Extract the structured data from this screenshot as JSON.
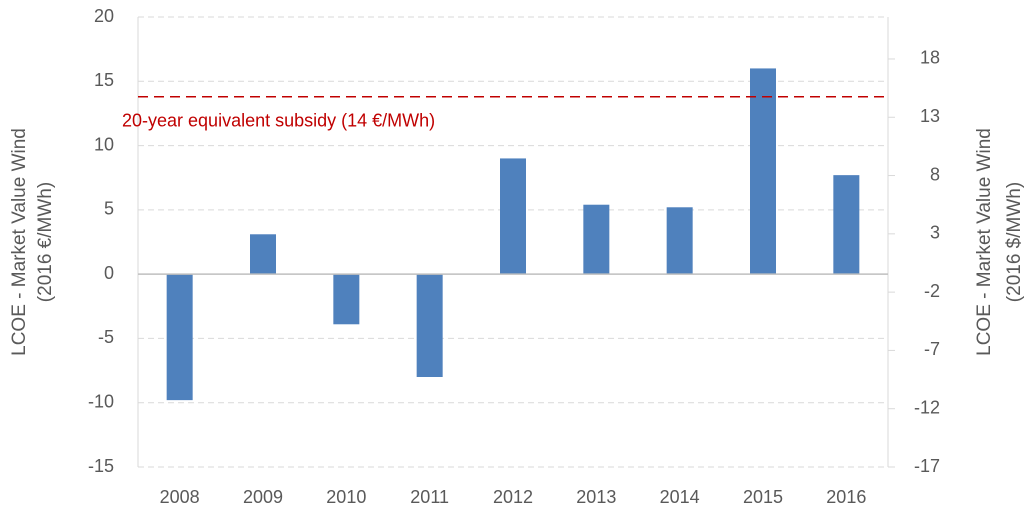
{
  "chart_data": {
    "type": "bar",
    "categories": [
      "2008",
      "2009",
      "2010",
      "2011",
      "2012",
      "2013",
      "2014",
      "2015",
      "2016"
    ],
    "values": [
      -9.8,
      3.1,
      -3.9,
      -8,
      9,
      5.4,
      5.2,
      16,
      7.7
    ],
    "color": "#4f81bd",
    "ylim": [
      -15,
      20
    ],
    "yticks": [
      -15,
      -10,
      -5,
      0,
      5,
      10,
      15,
      20
    ],
    "y2lim": [
      -17,
      21.6
    ],
    "y2ticks": [
      -17,
      -12,
      -7,
      -2,
      3,
      8,
      13,
      18
    ],
    "ylabel": [
      "LCOE - Market Value Wind",
      "(2016 €/MWh)"
    ],
    "y2label": [
      "LCOE - Market Value Wind",
      "(2016 $/MWh)"
    ],
    "grid": true,
    "reference_line": {
      "value": 13.8,
      "label": "20-year equivalent subsidy (14 €/MWh)",
      "color": "#c00000"
    }
  }
}
